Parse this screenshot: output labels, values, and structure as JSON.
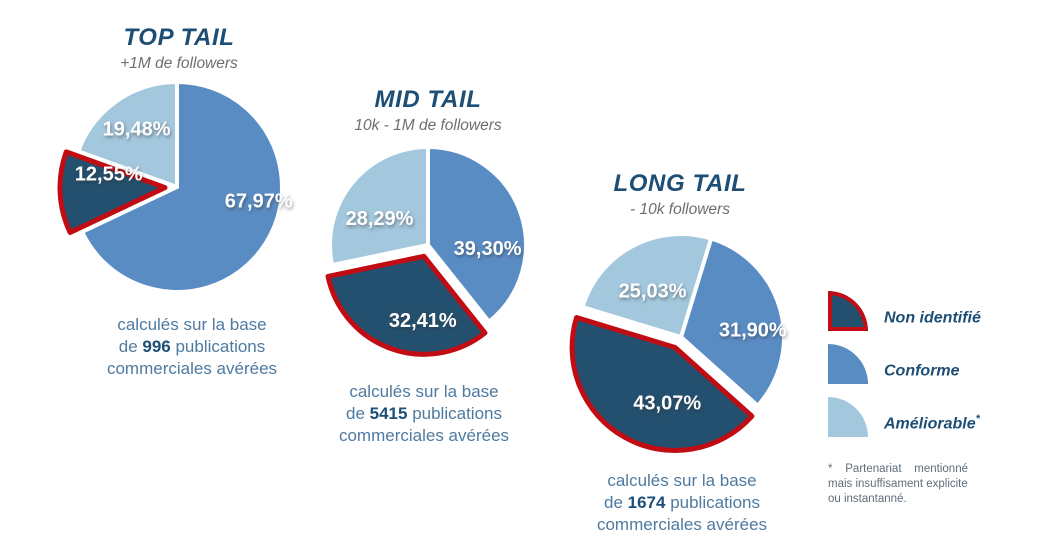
{
  "colors": {
    "conforme": "#5a8cc4",
    "ameliorable": "#a3c7dd",
    "non_identifie": "#24506f",
    "red_border": "#c00c12",
    "title": "#1d4e75",
    "subtitle": "#6d6e70",
    "caption_text": "#4f7aa0",
    "footnote_text": "#5f6d7a",
    "slice_label_text": "#ffffff",
    "background": "#ffffff"
  },
  "chart_data": {
    "type": "pie",
    "legend": [
      {
        "label": "Non identifié",
        "superscript": "",
        "color_key": "non_identifie",
        "red_outline": true
      },
      {
        "label": "Conforme",
        "superscript": "",
        "color_key": "conforme",
        "red_outline": false
      },
      {
        "label": "Améliorable",
        "superscript": "*",
        "color_key": "ameliorable",
        "red_outline": false
      }
    ],
    "pies": [
      {
        "title": "TOP TAIL",
        "subtitle": "+1M de followers",
        "slices": [
          {
            "segment": "Conforme",
            "value": 67.97,
            "display": "67,97%",
            "exploded": false
          },
          {
            "segment": "Non identifié",
            "value": 12.55,
            "display": "12,55%",
            "exploded": true
          },
          {
            "segment": "Améliorable",
            "value": 19.48,
            "display": "19,48%",
            "exploded": false
          }
        ],
        "caption": {
          "line1": "calculés sur la base",
          "line2_prefix": "de ",
          "count": "996",
          "line2_suffix": " publications",
          "line3": "commerciales avérées"
        }
      },
      {
        "title": "MID TAIL",
        "subtitle": "10k - 1M de followers",
        "slices": [
          {
            "segment": "Conforme",
            "value": 39.3,
            "display": "39,30%",
            "exploded": false
          },
          {
            "segment": "Non identifié",
            "value": 32.41,
            "display": "32,41%",
            "exploded": true
          },
          {
            "segment": "Améliorable",
            "value": 28.29,
            "display": "28,29%",
            "exploded": false
          }
        ],
        "caption": {
          "line1": "calculés sur la base",
          "line2_prefix": "de ",
          "count": "5415",
          "line2_suffix": " publications",
          "line3": "commerciales avérées"
        }
      },
      {
        "title": "LONG TAIL",
        "subtitle": "- 10k followers",
        "slices": [
          {
            "segment": "Conforme",
            "value": 31.9,
            "display": "31,90%",
            "exploded": false
          },
          {
            "segment": "Non identifié",
            "value": 43.07,
            "display": "43,07%",
            "exploded": true
          },
          {
            "segment": "Améliorable",
            "value": 25.03,
            "display": "25,03%",
            "exploded": false
          }
        ],
        "caption": {
          "line1": "calculés sur la base",
          "line2_prefix": "de ",
          "count": "1674",
          "line2_suffix": " publications",
          "line3": "commerciales avérées"
        }
      }
    ],
    "footnote": "*    Partenariat    mentionné\nmais insuffisament explicite\nou instantanné."
  }
}
